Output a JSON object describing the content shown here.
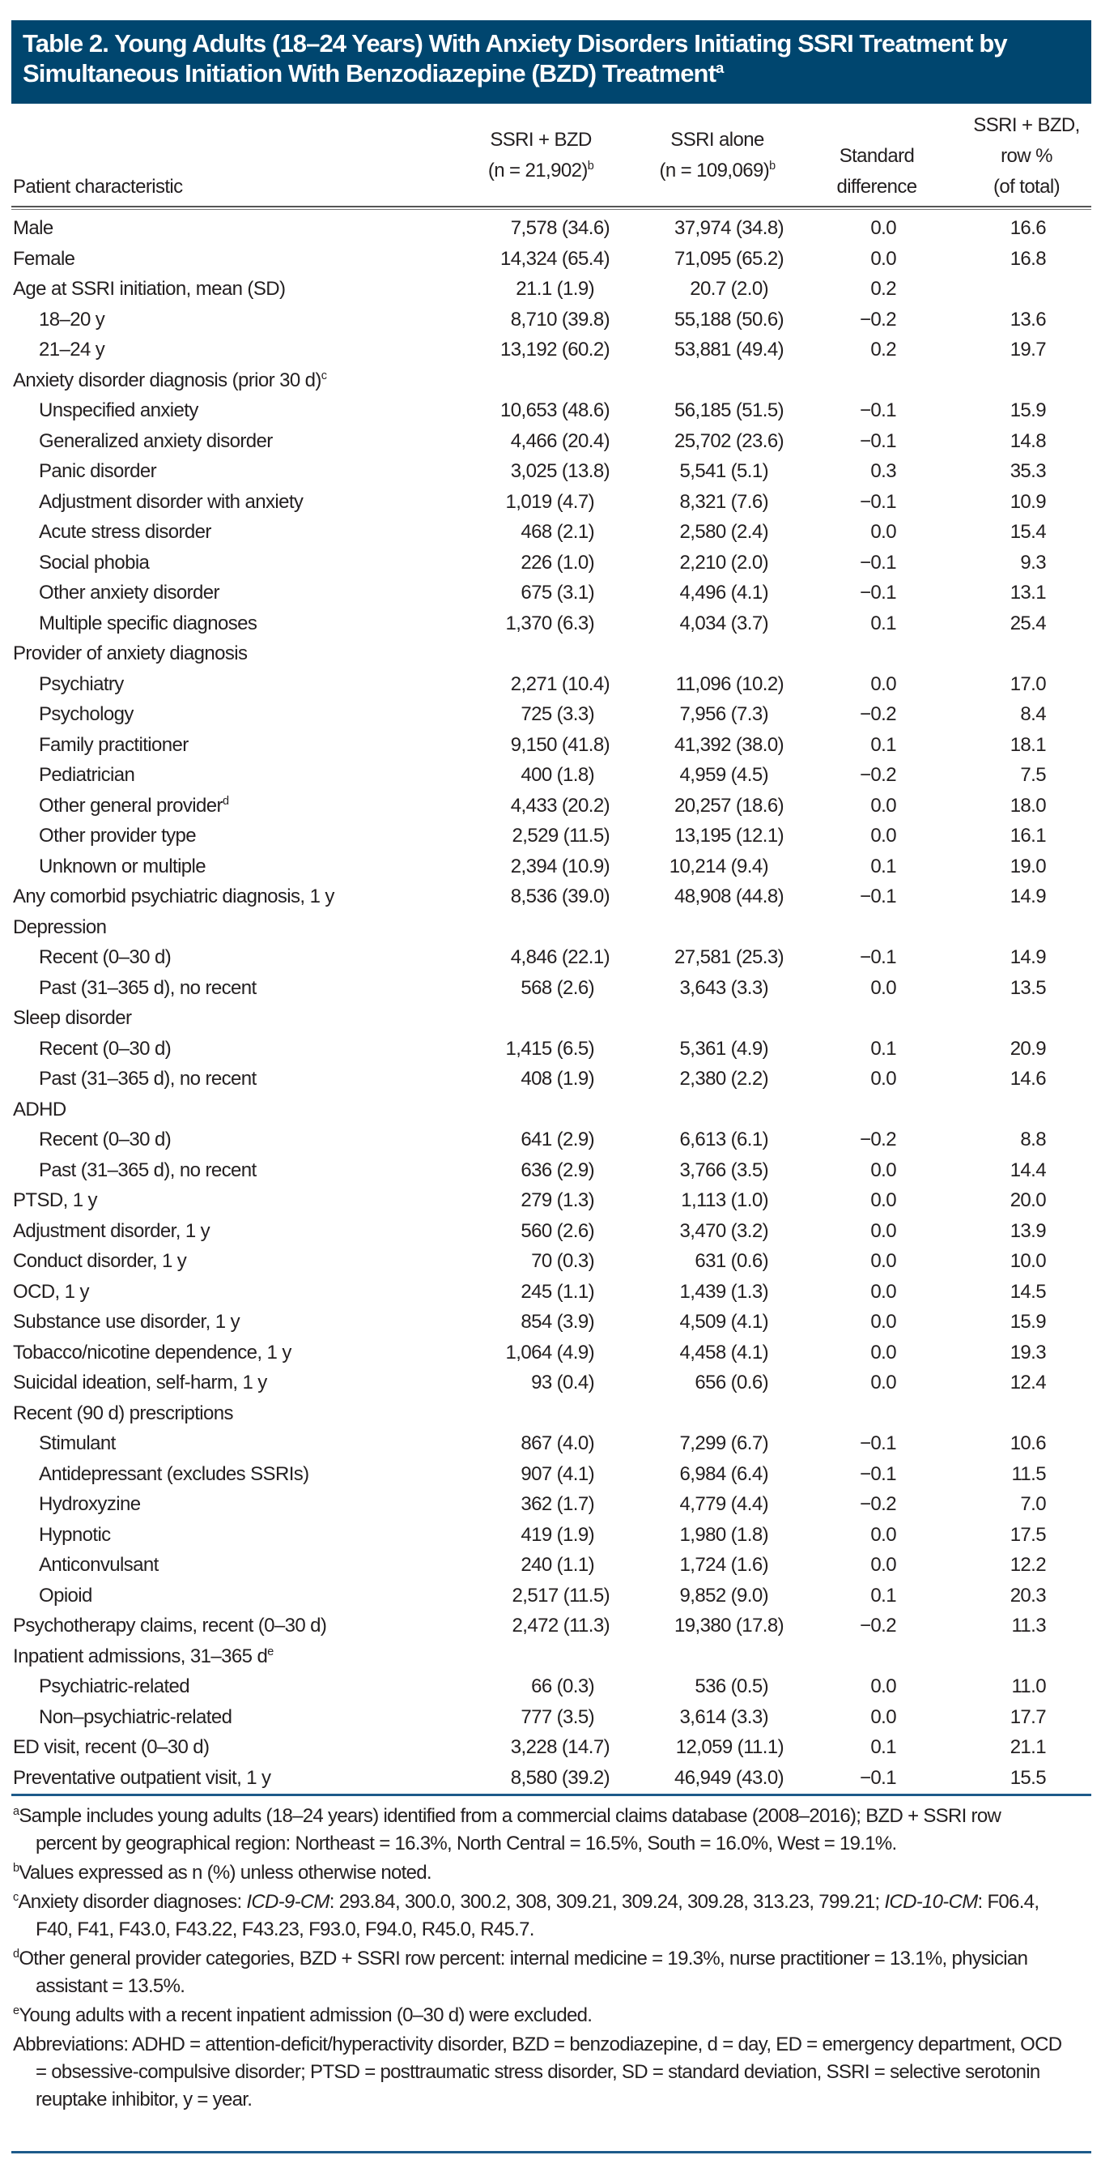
{
  "title": {
    "text": "Table 2. Young Adults (18–24 Years) With Anxiety Disorders Initiating SSRI Treatment by Simultaneous Initiation With Benzodiazepine (BZD) Treatment",
    "sup": "a"
  },
  "columns": {
    "label": "Patient characteristic",
    "bzd": {
      "line1": "SSRI + BZD",
      "line2": "(n = 21,902)",
      "sup": "b"
    },
    "alone": {
      "line1": "SSRI alone",
      "line2": "(n = 109,069)",
      "sup": "b"
    },
    "diff": {
      "line1": "Standard",
      "line2": "difference"
    },
    "pct": {
      "line1": "SSRI + BZD,",
      "line2": "row %",
      "line3": "(of total)"
    }
  },
  "rows": [
    {
      "label": "Male",
      "level": 0,
      "v": [
        "7,578 (34.6)",
        "37,974 (34.8)",
        "0.0",
        "16.6"
      ]
    },
    {
      "label": "Female",
      "level": 0,
      "v": [
        "14,324 (65.4)",
        "71,095 (65.2)",
        "0.0",
        "16.8"
      ]
    },
    {
      "label": "Age at SSRI initiation, mean (SD)",
      "level": 0,
      "v": [
        "21.1 (1.9)",
        "20.7 (2.0)",
        "0.2",
        ""
      ]
    },
    {
      "label": "18–20 y",
      "level": 1,
      "v": [
        "8,710 (39.8)",
        "55,188 (50.6)",
        "−0.2",
        "13.6"
      ]
    },
    {
      "label": "21–24 y",
      "level": 1,
      "v": [
        "13,192 (60.2)",
        "53,881 (49.4)",
        "0.2",
        "19.7"
      ]
    },
    {
      "label": "Anxiety disorder diagnosis (prior 30 d)",
      "sup": "c",
      "level": 0,
      "v": [
        "",
        "",
        "",
        ""
      ]
    },
    {
      "label": "Unspecified anxiety",
      "level": 1,
      "v": [
        "10,653 (48.6)",
        "56,185 (51.5)",
        "−0.1",
        "15.9"
      ]
    },
    {
      "label": "Generalized anxiety disorder",
      "level": 1,
      "v": [
        "4,466 (20.4)",
        "25,702 (23.6)",
        "−0.1",
        "14.8"
      ]
    },
    {
      "label": "Panic disorder",
      "level": 1,
      "v": [
        "3,025 (13.8)",
        "5,541 (5.1)",
        "0.3",
        "35.3"
      ]
    },
    {
      "label": "Adjustment disorder with anxiety",
      "level": 1,
      "v": [
        "1,019 (4.7)",
        "8,321 (7.6)",
        "−0.1",
        "10.9"
      ]
    },
    {
      "label": "Acute stress disorder",
      "level": 1,
      "v": [
        "468 (2.1)",
        "2,580 (2.4)",
        "0.0",
        "15.4"
      ]
    },
    {
      "label": "Social phobia",
      "level": 1,
      "v": [
        "226 (1.0)",
        "2,210 (2.0)",
        "−0.1",
        "9.3"
      ]
    },
    {
      "label": "Other anxiety disorder",
      "level": 1,
      "v": [
        "675 (3.1)",
        "4,496 (4.1)",
        "−0.1",
        "13.1"
      ]
    },
    {
      "label": "Multiple specific diagnoses",
      "level": 1,
      "v": [
        "1,370 (6.3)",
        "4,034 (3.7)",
        "0.1",
        "25.4"
      ]
    },
    {
      "label": "Provider of anxiety diagnosis",
      "level": 0,
      "v": [
        "",
        "",
        "",
        ""
      ]
    },
    {
      "label": "Psychiatry",
      "level": 1,
      "v": [
        "2,271 (10.4)",
        "11,096 (10.2)",
        "0.0",
        "17.0"
      ]
    },
    {
      "label": "Psychology",
      "level": 1,
      "v": [
        "725 (3.3)",
        "7,956 (7.3)",
        "−0.2",
        "8.4"
      ]
    },
    {
      "label": "Family practitioner",
      "level": 1,
      "v": [
        "9,150 (41.8)",
        "41,392 (38.0)",
        "0.1",
        "18.1"
      ]
    },
    {
      "label": "Pediatrician",
      "level": 1,
      "v": [
        "400 (1.8)",
        "4,959 (4.5)",
        "−0.2",
        "7.5"
      ]
    },
    {
      "label": "Other general provider",
      "sup": "d",
      "level": 1,
      "v": [
        "4,433 (20.2)",
        "20,257 (18.6)",
        "0.0",
        "18.0"
      ]
    },
    {
      "label": "Other provider type",
      "level": 1,
      "v": [
        "2,529 (11.5)",
        "13,195 (12.1)",
        "0.0",
        "16.1"
      ]
    },
    {
      "label": "Unknown or multiple",
      "level": 1,
      "v": [
        "2,394 (10.9)",
        "10,214 (9.4)",
        "0.1",
        "19.0"
      ]
    },
    {
      "label": "Any comorbid psychiatric diagnosis, 1 y",
      "level": 0,
      "v": [
        "8,536 (39.0)",
        "48,908 (44.8)",
        "−0.1",
        "14.9"
      ]
    },
    {
      "label": "Depression",
      "level": 0,
      "v": [
        "",
        "",
        "",
        ""
      ]
    },
    {
      "label": "Recent (0–30 d)",
      "level": 1,
      "v": [
        "4,846 (22.1)",
        "27,581 (25.3)",
        "−0.1",
        "14.9"
      ]
    },
    {
      "label": "Past (31–365 d), no recent",
      "level": 1,
      "v": [
        "568 (2.6)",
        "3,643 (3.3)",
        "0.0",
        "13.5"
      ]
    },
    {
      "label": "Sleep disorder",
      "level": 0,
      "v": [
        "",
        "",
        "",
        ""
      ]
    },
    {
      "label": "Recent (0–30 d)",
      "level": 1,
      "v": [
        "1,415 (6.5)",
        "5,361 (4.9)",
        "0.1",
        "20.9"
      ]
    },
    {
      "label": "Past (31–365 d), no recent",
      "level": 1,
      "v": [
        "408 (1.9)",
        "2,380 (2.2)",
        "0.0",
        "14.6"
      ]
    },
    {
      "label": "ADHD",
      "level": 0,
      "v": [
        "",
        "",
        "",
        ""
      ]
    },
    {
      "label": "Recent (0–30 d)",
      "level": 1,
      "v": [
        "641 (2.9)",
        "6,613 (6.1)",
        "−0.2",
        "8.8"
      ]
    },
    {
      "label": "Past (31–365 d), no recent",
      "level": 1,
      "v": [
        "636 (2.9)",
        "3,766 (3.5)",
        "0.0",
        "14.4"
      ]
    },
    {
      "label": "PTSD, 1 y",
      "level": 0,
      "v": [
        "279 (1.3)",
        "1,113 (1.0)",
        "0.0",
        "20.0"
      ]
    },
    {
      "label": "Adjustment disorder, 1 y",
      "level": 0,
      "v": [
        "560 (2.6)",
        "3,470 (3.2)",
        "0.0",
        "13.9"
      ]
    },
    {
      "label": "Conduct disorder, 1 y",
      "level": 0,
      "v": [
        "70 (0.3)",
        "631 (0.6)",
        "0.0",
        "10.0"
      ]
    },
    {
      "label": "OCD, 1 y",
      "level": 0,
      "v": [
        "245 (1.1)",
        "1,439 (1.3)",
        "0.0",
        "14.5"
      ]
    },
    {
      "label": "Substance use disorder, 1 y",
      "level": 0,
      "v": [
        "854 (3.9)",
        "4,509 (4.1)",
        "0.0",
        "15.9"
      ]
    },
    {
      "label": "Tobacco/nicotine dependence, 1 y",
      "level": 0,
      "v": [
        "1,064 (4.9)",
        "4,458 (4.1)",
        "0.0",
        "19.3"
      ]
    },
    {
      "label": "Suicidal ideation, self-harm, 1 y",
      "level": 0,
      "v": [
        "93 (0.4)",
        "656 (0.6)",
        "0.0",
        "12.4"
      ]
    },
    {
      "label": "Recent (90 d) prescriptions",
      "level": 0,
      "v": [
        "",
        "",
        "",
        ""
      ]
    },
    {
      "label": "Stimulant",
      "level": 1,
      "v": [
        "867 (4.0)",
        "7,299 (6.7)",
        "−0.1",
        "10.6"
      ]
    },
    {
      "label": "Antidepressant (excludes SSRIs)",
      "level": 1,
      "v": [
        "907 (4.1)",
        "6,984 (6.4)",
        "−0.1",
        "11.5"
      ]
    },
    {
      "label": "Hydroxyzine",
      "level": 1,
      "v": [
        "362 (1.7)",
        "4,779 (4.4)",
        "−0.2",
        "7.0"
      ]
    },
    {
      "label": "Hypnotic",
      "level": 1,
      "v": [
        "419 (1.9)",
        "1,980 (1.8)",
        "0.0",
        "17.5"
      ]
    },
    {
      "label": "Anticonvulsant",
      "level": 1,
      "v": [
        "240 (1.1)",
        "1,724 (1.6)",
        "0.0",
        "12.2"
      ]
    },
    {
      "label": "Opioid",
      "level": 1,
      "v": [
        "2,517 (11.5)",
        "9,852 (9.0)",
        "0.1",
        "20.3"
      ]
    },
    {
      "label": "Psychotherapy claims, recent (0–30 d)",
      "level": 0,
      "v": [
        "2,472 (11.3)",
        "19,380 (17.8)",
        "−0.2",
        "11.3"
      ]
    },
    {
      "label": "Inpatient admissions, 31–365 d",
      "sup": "e",
      "level": 0,
      "v": [
        "",
        "",
        "",
        ""
      ]
    },
    {
      "label": "Psychiatric-related",
      "level": 1,
      "v": [
        "66 (0.3)",
        "536 (0.5)",
        "0.0",
        "11.0"
      ]
    },
    {
      "label": "Non–psychiatric-related",
      "level": 1,
      "v": [
        "777 (3.5)",
        "3,614 (3.3)",
        "0.0",
        "17.7"
      ]
    },
    {
      "label": "ED visit, recent (0–30 d)",
      "level": 0,
      "v": [
        "3,228 (14.7)",
        "12,059 (11.1)",
        "0.1",
        "21.1"
      ]
    },
    {
      "label": "Preventative outpatient visit, 1 y",
      "level": 0,
      "v": [
        "8,580 (39.2)",
        "46,949 (43.0)",
        "−0.1",
        "15.5"
      ]
    }
  ],
  "footnotes": [
    {
      "mark": "a",
      "text": "Sample includes young adults (18–24 years) identified from a commercial claims database (2008–2016); BZD + SSRI row percent by geographical region: Northeast = 16.3%, North Central = 16.5%, South = 16.0%, West = 19.1%."
    },
    {
      "mark": "b",
      "text": "Values expressed as n (%) unless otherwise noted."
    },
    {
      "mark": "c",
      "pre": "Anxiety disorder diagnoses: ",
      "i1": "ICD-9-CM",
      "mid": ": 293.84, 300.0, 300.2, 308, 309.21, 309.24, 309.28, 313.23, 799.21; ",
      "i2": "ICD-10-CM",
      "post": ": F06.4, F40, F41, F43.0, F43.22, F43.23, F93.0, F94.0, R45.0, R45.7."
    },
    {
      "mark": "d",
      "text": "Other general provider categories, BZD + SSRI row percent: internal medicine = 19.3%, nurse practitioner = 13.1%, physician assistant = 13.5%."
    },
    {
      "mark": "e",
      "text": "Young adults with a recent inpatient admission (0–30 d) were excluded."
    }
  ],
  "abbreviations": "Abbreviations: ADHD = attention-deficit/hyperactivity disorder, BZD = benzodiazepine, d = day, ED = emergency department, OCD = obsessive-compulsive disorder; PTSD = posttraumatic stress disorder, SD = standard deviation, SSRI = selective serotonin reuptake inhibitor, y = year.",
  "colors": {
    "title_bg": "#00466f",
    "rule": "#1d5a8a"
  }
}
